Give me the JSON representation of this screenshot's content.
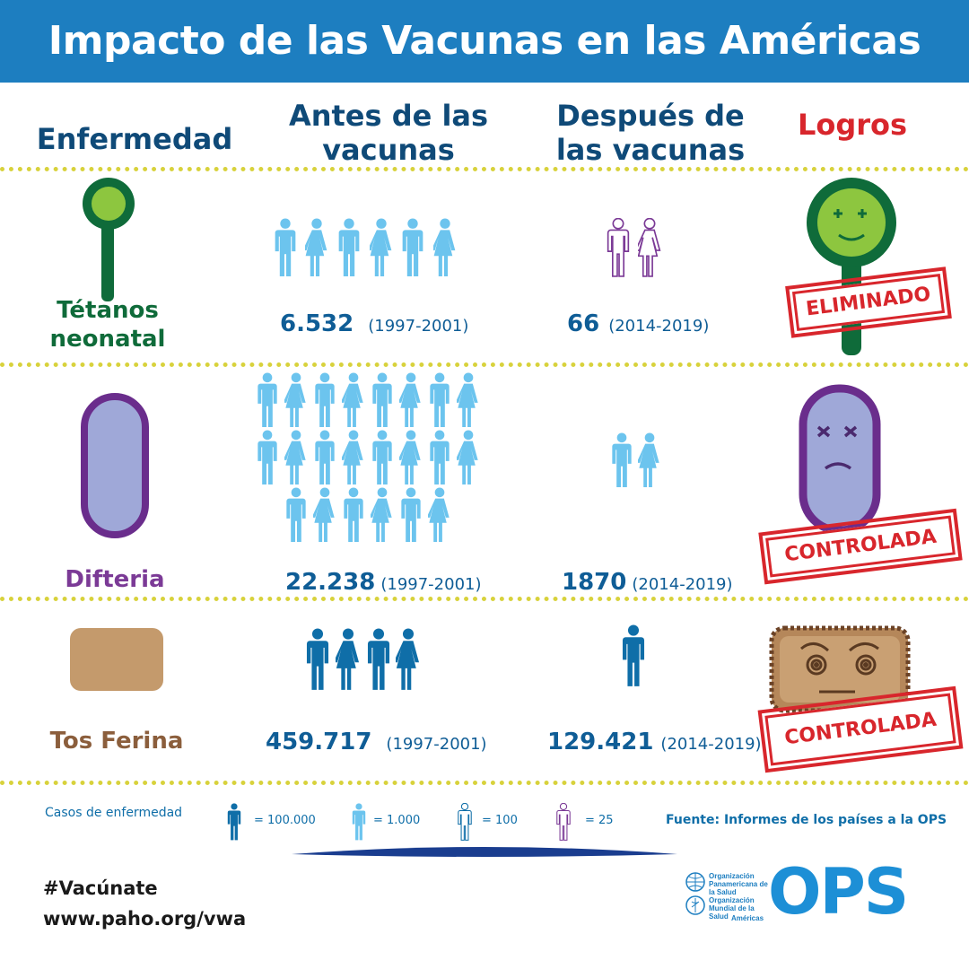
{
  "title": "Impacto de las Vacunas en las Américas",
  "columns": {
    "disease": "Enfermedad",
    "before": "Antes de las vacunas",
    "after": "Después de las vacunas",
    "achievements": "Logros"
  },
  "rows": [
    {
      "disease": "Tétanos neonatal",
      "before_value": "6.532",
      "before_period": "(1997-2001)",
      "after_value": "66",
      "after_period": "(2014-2019)",
      "achievement": "ELIMINADO",
      "disease_color": "#0f6b3a"
    },
    {
      "disease": "Difteria",
      "before_value": "22.238",
      "before_period": "(1997-2001)",
      "after_value": "1870",
      "after_period": "(2014-2019)",
      "achievement": "CONTROLADA",
      "disease_color": "#7b3a96"
    },
    {
      "disease": "Tos Ferina",
      "before_value": "459.717",
      "before_period": "(1997-2001)",
      "after_value": "129.421",
      "after_period": "(2014-2019)",
      "achievement": "CONTROLADA",
      "disease_color": "#8b5e3c"
    }
  ],
  "legend": {
    "label": "Casos de enfermedad",
    "items": [
      {
        "icon": "person-dark-blue-icon",
        "value": "= 100.000"
      },
      {
        "icon": "person-light-blue-icon",
        "value": "= 1.000"
      },
      {
        "icon": "person-outline-blue-icon",
        "value": "= 100"
      },
      {
        "icon": "person-outline-purple-icon",
        "value": "= 25"
      }
    ],
    "source": "Fuente: Informes de los países a la OPS"
  },
  "footer": {
    "hashtag": "#Vacúnate",
    "url": "www.paho.org/vwa",
    "org_line1": "Organización Panamericana de la Salud",
    "org_line2": "Organización Mundial de la Salud",
    "org_region": "Américas",
    "logo_text": "OPS"
  },
  "colors": {
    "banner": "#1d7ec0",
    "heading": "#0f4a78",
    "logros": "#d8262c",
    "dark_blue": "#0f5d96",
    "light_blue": "#6cc4ee",
    "outline_purple": "#7b3a96",
    "separator": "#d8d23c"
  }
}
